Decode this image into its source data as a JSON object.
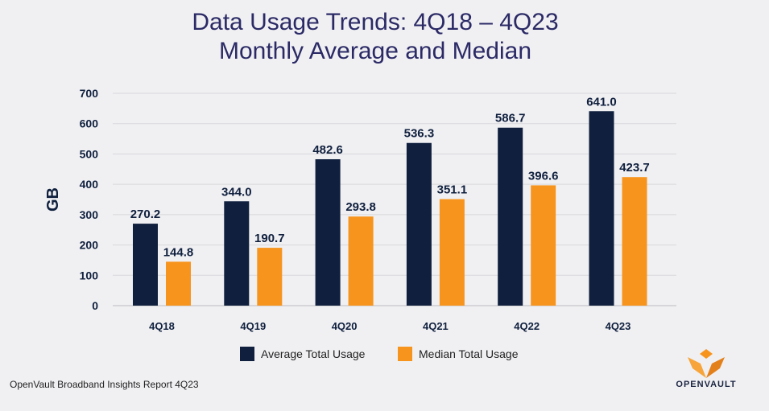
{
  "title_line1": "Data Usage Trends: 4Q18 – 4Q23",
  "title_line2": "Monthly Average and Median",
  "footer": "OpenVault Broadband Insights Report 4Q23",
  "logo_text": "OpenVault",
  "colors": {
    "average": "#0f1f3d",
    "median": "#f7941d",
    "title": "#2b2a66"
  },
  "chart_data": {
    "type": "bar",
    "title": "Data Usage Trends: 4Q18 – 4Q23 Monthly Average and Median",
    "ylabel": "GB",
    "xlabel": "",
    "ylim": [
      0,
      700
    ],
    "yticks": [
      0,
      100,
      200,
      300,
      400,
      500,
      600,
      700
    ],
    "grid": true,
    "legend": "bottom",
    "categories": [
      "4Q18",
      "4Q19",
      "4Q20",
      "4Q21",
      "4Q22",
      "4Q23"
    ],
    "series": [
      {
        "name": "Average Total Usage",
        "values": [
          270.2,
          344.0,
          482.6,
          536.3,
          586.7,
          641.0
        ],
        "labels": [
          "270.2",
          "344.0",
          "482.6",
          "536.3",
          "586.7",
          "641.0"
        ]
      },
      {
        "name": "Median Total Usage",
        "values": [
          144.8,
          190.7,
          293.8,
          351.1,
          396.6,
          423.7
        ],
        "labels": [
          "144.8",
          "190.7",
          "293.8",
          "351.1",
          "396.6",
          "423.7"
        ]
      }
    ]
  }
}
